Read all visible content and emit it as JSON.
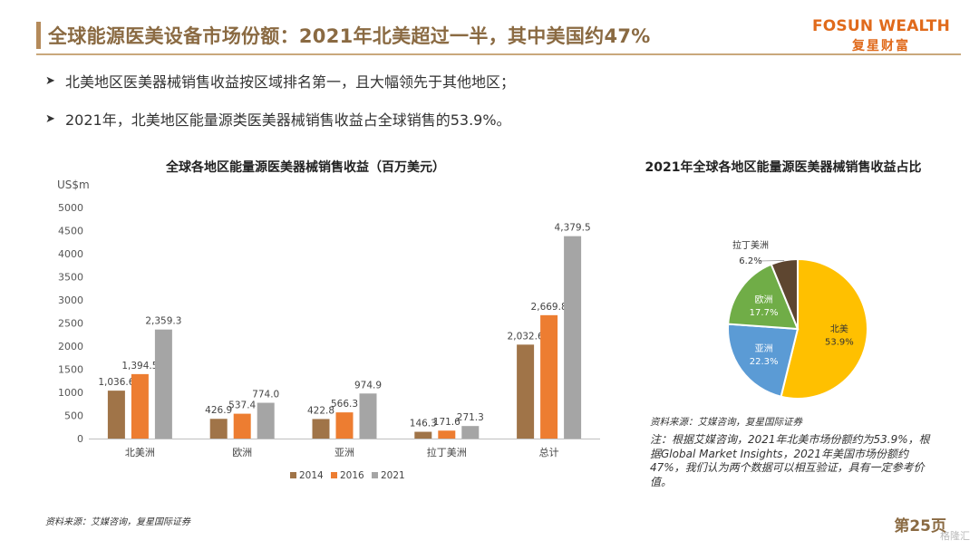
{
  "header": {
    "title": "全球能源医美设备市场份额：2021年北美超过一半，其中美国约47%",
    "brand_en": "FOSUN WEALTH",
    "brand_cn": "复星财富"
  },
  "bullets": [
    "北美地区医美器械销售收益按区域排名第一，且大幅领先于其他地区；",
    "2021年，北美地区能量源类医美器械销售收益占全球销售的53.9%。"
  ],
  "footer": {
    "source": "资料来源：艾媒咨询，复星国际证券",
    "page": "第25页",
    "watermark": "格隆汇"
  },
  "notes": {
    "source": "资料来源：艾媒咨询，复星国际证券",
    "text": "注：根据艾媒咨询，2021年北美市场份额约为53.9%，根据Global Market Insights，2021年美国市场份额约47%，我们认为两个数据可以相互验证，具有一定参考价值。"
  },
  "colors": {
    "accent": "#8a6a42",
    "brand": "#e06a1b",
    "s2014": "#a07448",
    "s2016": "#ed7d31",
    "s2021": "#a5a5a5",
    "pie_na": "#ffc000",
    "pie_asia": "#5b9bd5",
    "pie_eu": "#70ad47",
    "pie_latam": "#5e4630"
  },
  "chart_data": [
    {
      "type": "bar",
      "title": "全球各地区能量源医美器械销售收益（百万美元）",
      "ylabel": "US$m",
      "ylim": [
        0,
        5000
      ],
      "yticks": [
        0,
        500,
        1000,
        1500,
        2000,
        2500,
        3000,
        3500,
        4000,
        4500,
        5000
      ],
      "categories": [
        "北美洲",
        "欧洲",
        "亚洲",
        "拉丁美洲",
        "总计"
      ],
      "series": [
        {
          "name": "2014",
          "values": [
            1036.6,
            426.9,
            422.8,
            146.3,
            2032.6
          ]
        },
        {
          "name": "2016",
          "values": [
            1394.5,
            537.4,
            566.3,
            171.6,
            2669.8
          ]
        },
        {
          "name": "2021",
          "values": [
            2359.3,
            774.0,
            974.9,
            271.3,
            4379.5
          ]
        }
      ],
      "labels": [
        [
          "1,036.6",
          "426.9",
          "422.8",
          "146.3",
          "2,032.6"
        ],
        [
          "1,394.5",
          "537.4",
          "566.3",
          "171.6",
          "2,669.8"
        ],
        [
          "2,359.3",
          "774.0",
          "974.9",
          "271.3",
          "4,379.5"
        ]
      ],
      "legend": "bottom",
      "grid": false
    },
    {
      "type": "pie",
      "title": "2021年全球各地区能量源医美器械销售收益占比",
      "slices": [
        {
          "name": "北美",
          "value": 53.9,
          "label": "53.9%"
        },
        {
          "name": "亚洲",
          "value": 22.3,
          "label": "22.3%"
        },
        {
          "name": "欧洲",
          "value": 17.7,
          "label": "17.7%"
        },
        {
          "name": "拉丁美洲",
          "value": 6.2,
          "label": "6.2%"
        }
      ]
    }
  ]
}
